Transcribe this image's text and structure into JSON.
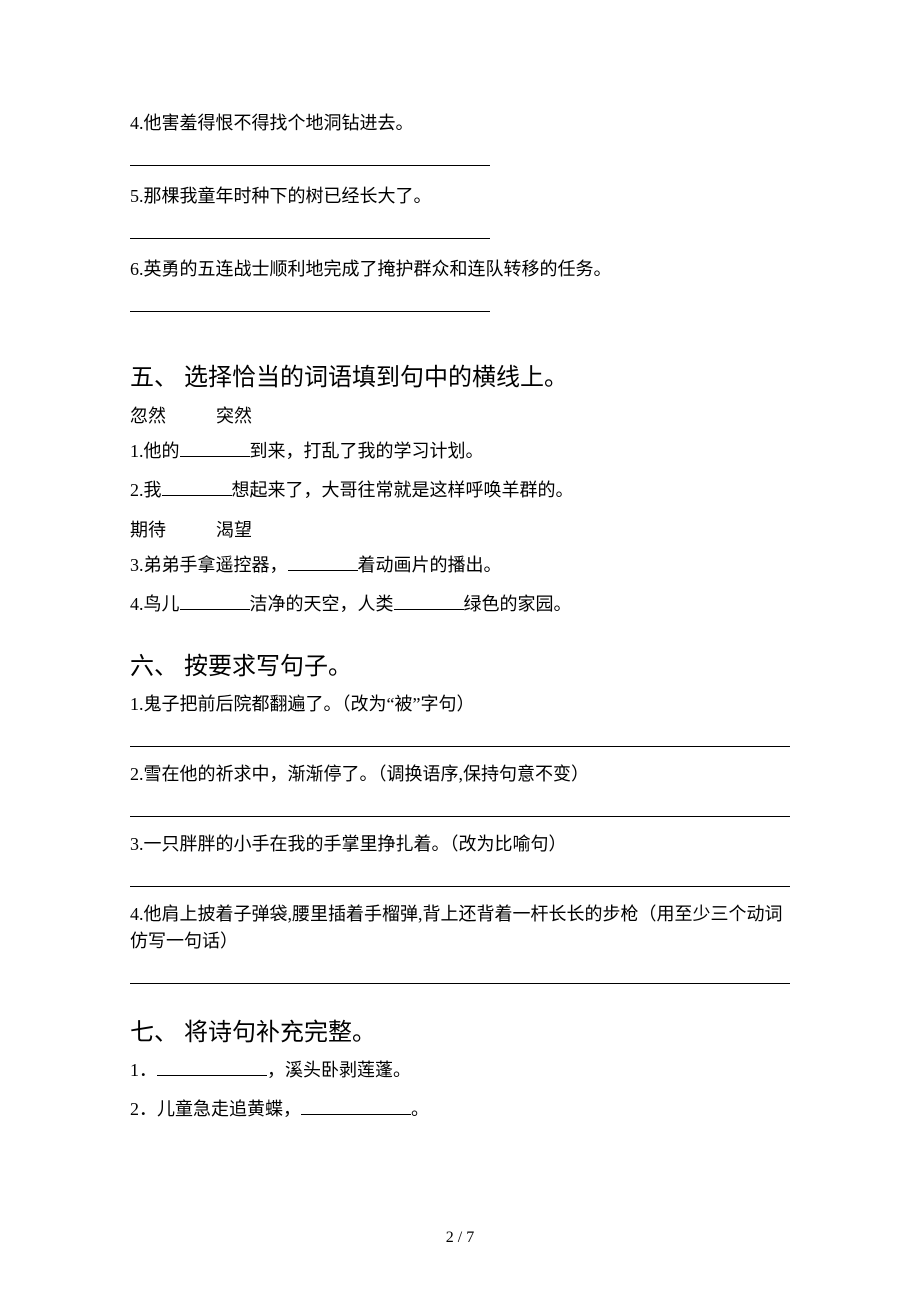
{
  "sec4": {
    "q4": "4.他害羞得恨不得找个地洞钻进去。",
    "q5": "5.那棵我童年时种下的树已经长大了。",
    "q6": "6.英勇的五连战士顺利地完成了掩护群众和连队转移的任务。"
  },
  "sec5": {
    "heading": "五、 选择恰当的词语填到句中的横线上。",
    "pair1a": "忽然",
    "pair1b": "突然",
    "q1a": "1.他的",
    "q1b": "到来，打乱了我的学习计划。",
    "q2a": "2.我",
    "q2b": "想起来了，大哥往常就是这样呼唤羊群的。",
    "pair2a": "期待",
    "pair2b": "渴望",
    "q3a": "3.弟弟手拿遥控器，",
    "q3b": "着动画片的播出。",
    "q4a": "4.鸟儿",
    "q4b": "洁净的天空，人类",
    "q4c": "绿色的家园。"
  },
  "sec6": {
    "heading": "六、 按要求写句子。",
    "q1": "1.鬼子把前后院都翻遍了。（改为“被”字句）",
    "q2": "2.雪在他的祈求中，渐渐停了。（调换语序,保持句意不变）",
    "q3": "3.一只胖胖的小手在我的手掌里挣扎着。（改为比喻句）",
    "q4": "4.他肩上披着子弹袋,腰里插着手榴弹,背上还背着一杆长长的步枪（用至少三个动词仿写一句话）"
  },
  "sec7": {
    "heading": "七、 将诗句补充完整。",
    "q1a": "1．",
    "q1b": "，溪头卧剥莲蓬。",
    "q2a": "2．儿童急走追黄蝶，",
    "q2b": "。"
  },
  "pageNumber": "2 / 7"
}
